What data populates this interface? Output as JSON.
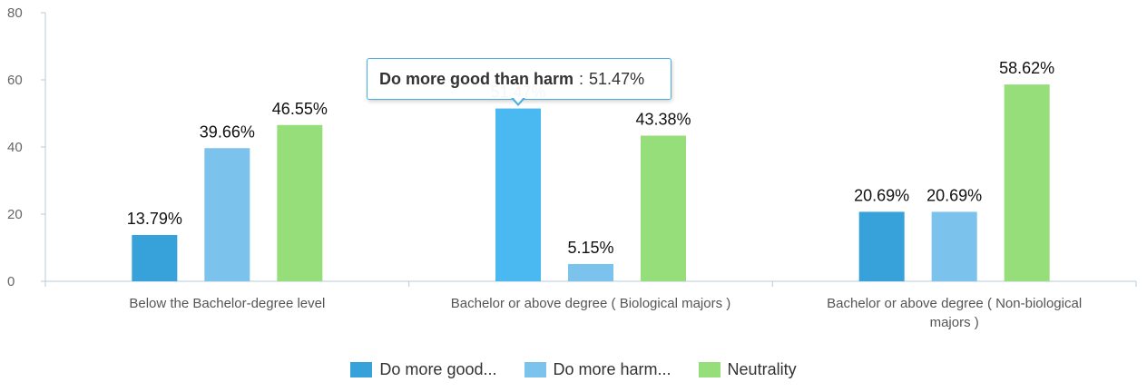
{
  "chart_data": {
    "type": "bar",
    "categories": [
      [
        "Below the Bachelor-degree level"
      ],
      [
        "Bachelor or above degree ( Biological majors )"
      ],
      [
        "Bachelor or above degree ( Non-biological",
        "majors )"
      ]
    ],
    "series": [
      {
        "name": "Do more good...",
        "full_name": "Do more good than harm",
        "color": "#37a2da",
        "values": [
          13.79,
          51.47,
          20.69
        ],
        "labels": [
          "13.79%",
          "51.47%",
          "20.69%"
        ]
      },
      {
        "name": "Do more harm...",
        "color": "#7bc2ed",
        "values": [
          39.66,
          5.15,
          20.69
        ],
        "labels": [
          "39.66%",
          "5.15%",
          "20.69%"
        ]
      },
      {
        "name": "Neutrality",
        "color": "#96de7a",
        "values": [
          46.55,
          43.38,
          58.62
        ],
        "labels": [
          "46.55%",
          "43.38%",
          "58.62%"
        ]
      }
    ],
    "highlight": {
      "series": 0,
      "category": 1,
      "color": "#4ab9f2"
    },
    "ylim": [
      0,
      80
    ],
    "yticks": [
      "0",
      "20",
      "40",
      "60",
      "80"
    ],
    "grid": false,
    "legend": "bottom-center"
  },
  "tooltip": {
    "name": "Do more good than harm",
    "separator": ":",
    "value": "51.47%"
  }
}
